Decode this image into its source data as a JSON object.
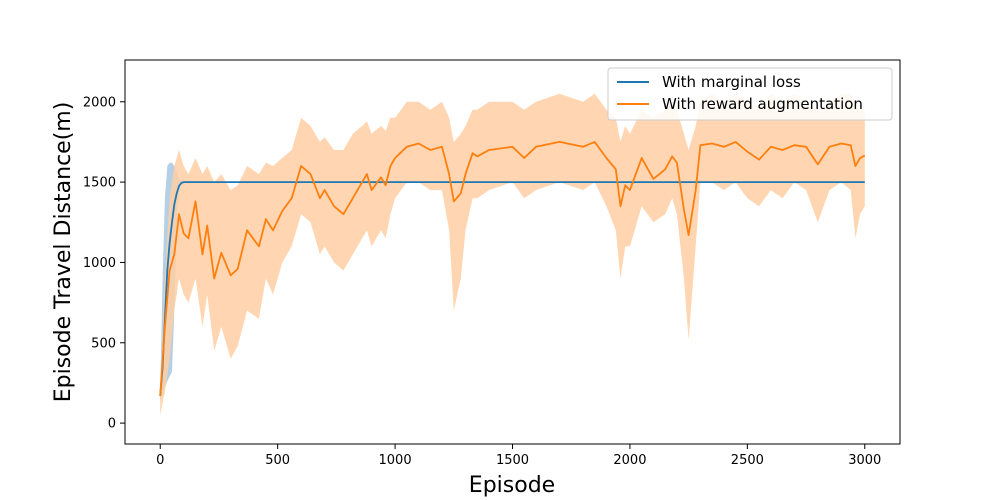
{
  "chart_data": {
    "type": "line",
    "title": "",
    "xlabel": "Episode",
    "ylabel": "Episode Travel Distance(m)",
    "xlim": [
      -150,
      3150
    ],
    "ylim": [
      -130,
      2260
    ],
    "xticks": [
      0,
      500,
      1000,
      1500,
      2000,
      2500,
      3000
    ],
    "yticks": [
      0,
      500,
      1000,
      1500,
      2000
    ],
    "grid": false,
    "legend_position": "top-right",
    "series": [
      {
        "name": "With marginal loss",
        "color": "#1f77b4",
        "band_color": "#a8c8e0",
        "x": [
          0,
          10,
          20,
          30,
          40,
          50,
          60,
          70,
          80,
          90,
          100,
          150,
          200,
          500,
          1000,
          1500,
          2000,
          2500,
          3000
        ],
        "y": [
          170,
          350,
          650,
          950,
          1120,
          1250,
          1360,
          1430,
          1475,
          1495,
          1500,
          1500,
          1500,
          1500,
          1500,
          1500,
          1500,
          1500,
          1500
        ],
        "band_upper": [
          200,
          900,
          1400,
          1600,
          1620,
          1620,
          1600,
          1560,
          1520,
          1505,
          1500,
          1500,
          1500,
          1500,
          1500,
          1500,
          1500,
          1500,
          1500
        ],
        "band_lower": [
          140,
          180,
          220,
          260,
          290,
          320,
          700,
          1200,
          1450,
          1490,
          1500,
          1500,
          1500,
          1500,
          1500,
          1500,
          1500,
          1500,
          1500
        ]
      },
      {
        "name": "With reward augmentation",
        "color": "#ff7f0e",
        "band_color": "#ffcfa3",
        "x": [
          0,
          20,
          40,
          60,
          80,
          100,
          120,
          150,
          180,
          200,
          230,
          260,
          300,
          330,
          370,
          420,
          450,
          480,
          520,
          560,
          600,
          640,
          680,
          700,
          740,
          780,
          820,
          860,
          880,
          900,
          940,
          960,
          980,
          1000,
          1050,
          1100,
          1150,
          1200,
          1230,
          1250,
          1280,
          1300,
          1330,
          1350,
          1400,
          1500,
          1550,
          1600,
          1700,
          1800,
          1850,
          1900,
          1940,
          1960,
          1980,
          2000,
          2050,
          2100,
          2150,
          2180,
          2200,
          2230,
          2250,
          2280,
          2300,
          2350,
          2400,
          2450,
          2500,
          2550,
          2600,
          2650,
          2700,
          2750,
          2800,
          2850,
          2900,
          2940,
          2960,
          2980,
          3000
        ],
        "y": [
          170,
          600,
          950,
          1050,
          1300,
          1180,
          1150,
          1380,
          1050,
          1230,
          900,
          1060,
          920,
          960,
          1200,
          1100,
          1270,
          1200,
          1320,
          1400,
          1600,
          1550,
          1400,
          1450,
          1350,
          1300,
          1400,
          1500,
          1550,
          1450,
          1530,
          1480,
          1600,
          1650,
          1720,
          1740,
          1700,
          1720,
          1550,
          1380,
          1430,
          1550,
          1680,
          1660,
          1700,
          1720,
          1650,
          1720,
          1750,
          1720,
          1750,
          1650,
          1580,
          1350,
          1480,
          1450,
          1650,
          1520,
          1580,
          1660,
          1620,
          1330,
          1170,
          1450,
          1730,
          1740,
          1720,
          1750,
          1690,
          1640,
          1720,
          1700,
          1730,
          1720,
          1610,
          1720,
          1740,
          1730,
          1600,
          1650,
          1665
        ],
        "band_upper": [
          200,
          900,
          1400,
          1600,
          1700,
          1600,
          1550,
          1650,
          1550,
          1600,
          1500,
          1550,
          1450,
          1480,
          1600,
          1550,
          1620,
          1600,
          1650,
          1700,
          1900,
          1850,
          1750,
          1780,
          1700,
          1700,
          1800,
          1850,
          1880,
          1800,
          1850,
          1820,
          1900,
          1900,
          2000,
          2000,
          1950,
          2000,
          1900,
          1750,
          1800,
          1850,
          1950,
          1950,
          2000,
          2000,
          1950,
          2000,
          2050,
          2000,
          2050,
          1950,
          1900,
          1750,
          1850,
          1800,
          1950,
          1900,
          1950,
          2000,
          1950,
          1800,
          1700,
          1850,
          2000,
          2050,
          2000,
          2050,
          2000,
          1950,
          2050,
          2000,
          2050,
          2000,
          1950,
          2000,
          2050,
          2050,
          1950,
          1950,
          1950
        ],
        "band_lower": [
          50,
          200,
          400,
          700,
          900,
          800,
          750,
          900,
          600,
          800,
          450,
          600,
          400,
          480,
          700,
          650,
          900,
          800,
          1000,
          1100,
          1300,
          1250,
          1050,
          1100,
          1000,
          950,
          1050,
          1150,
          1200,
          1100,
          1200,
          1150,
          1300,
          1400,
          1500,
          1500,
          1450,
          1450,
          1200,
          700,
          900,
          1200,
          1400,
          1400,
          1450,
          1500,
          1400,
          1450,
          1500,
          1450,
          1500,
          1350,
          1200,
          900,
          1100,
          1100,
          1350,
          1250,
          1300,
          1400,
          1300,
          900,
          520,
          1100,
          1500,
          1500,
          1450,
          1500,
          1400,
          1350,
          1450,
          1400,
          1500,
          1450,
          1250,
          1450,
          1500,
          1450,
          1150,
          1300,
          1350
        ]
      }
    ]
  }
}
